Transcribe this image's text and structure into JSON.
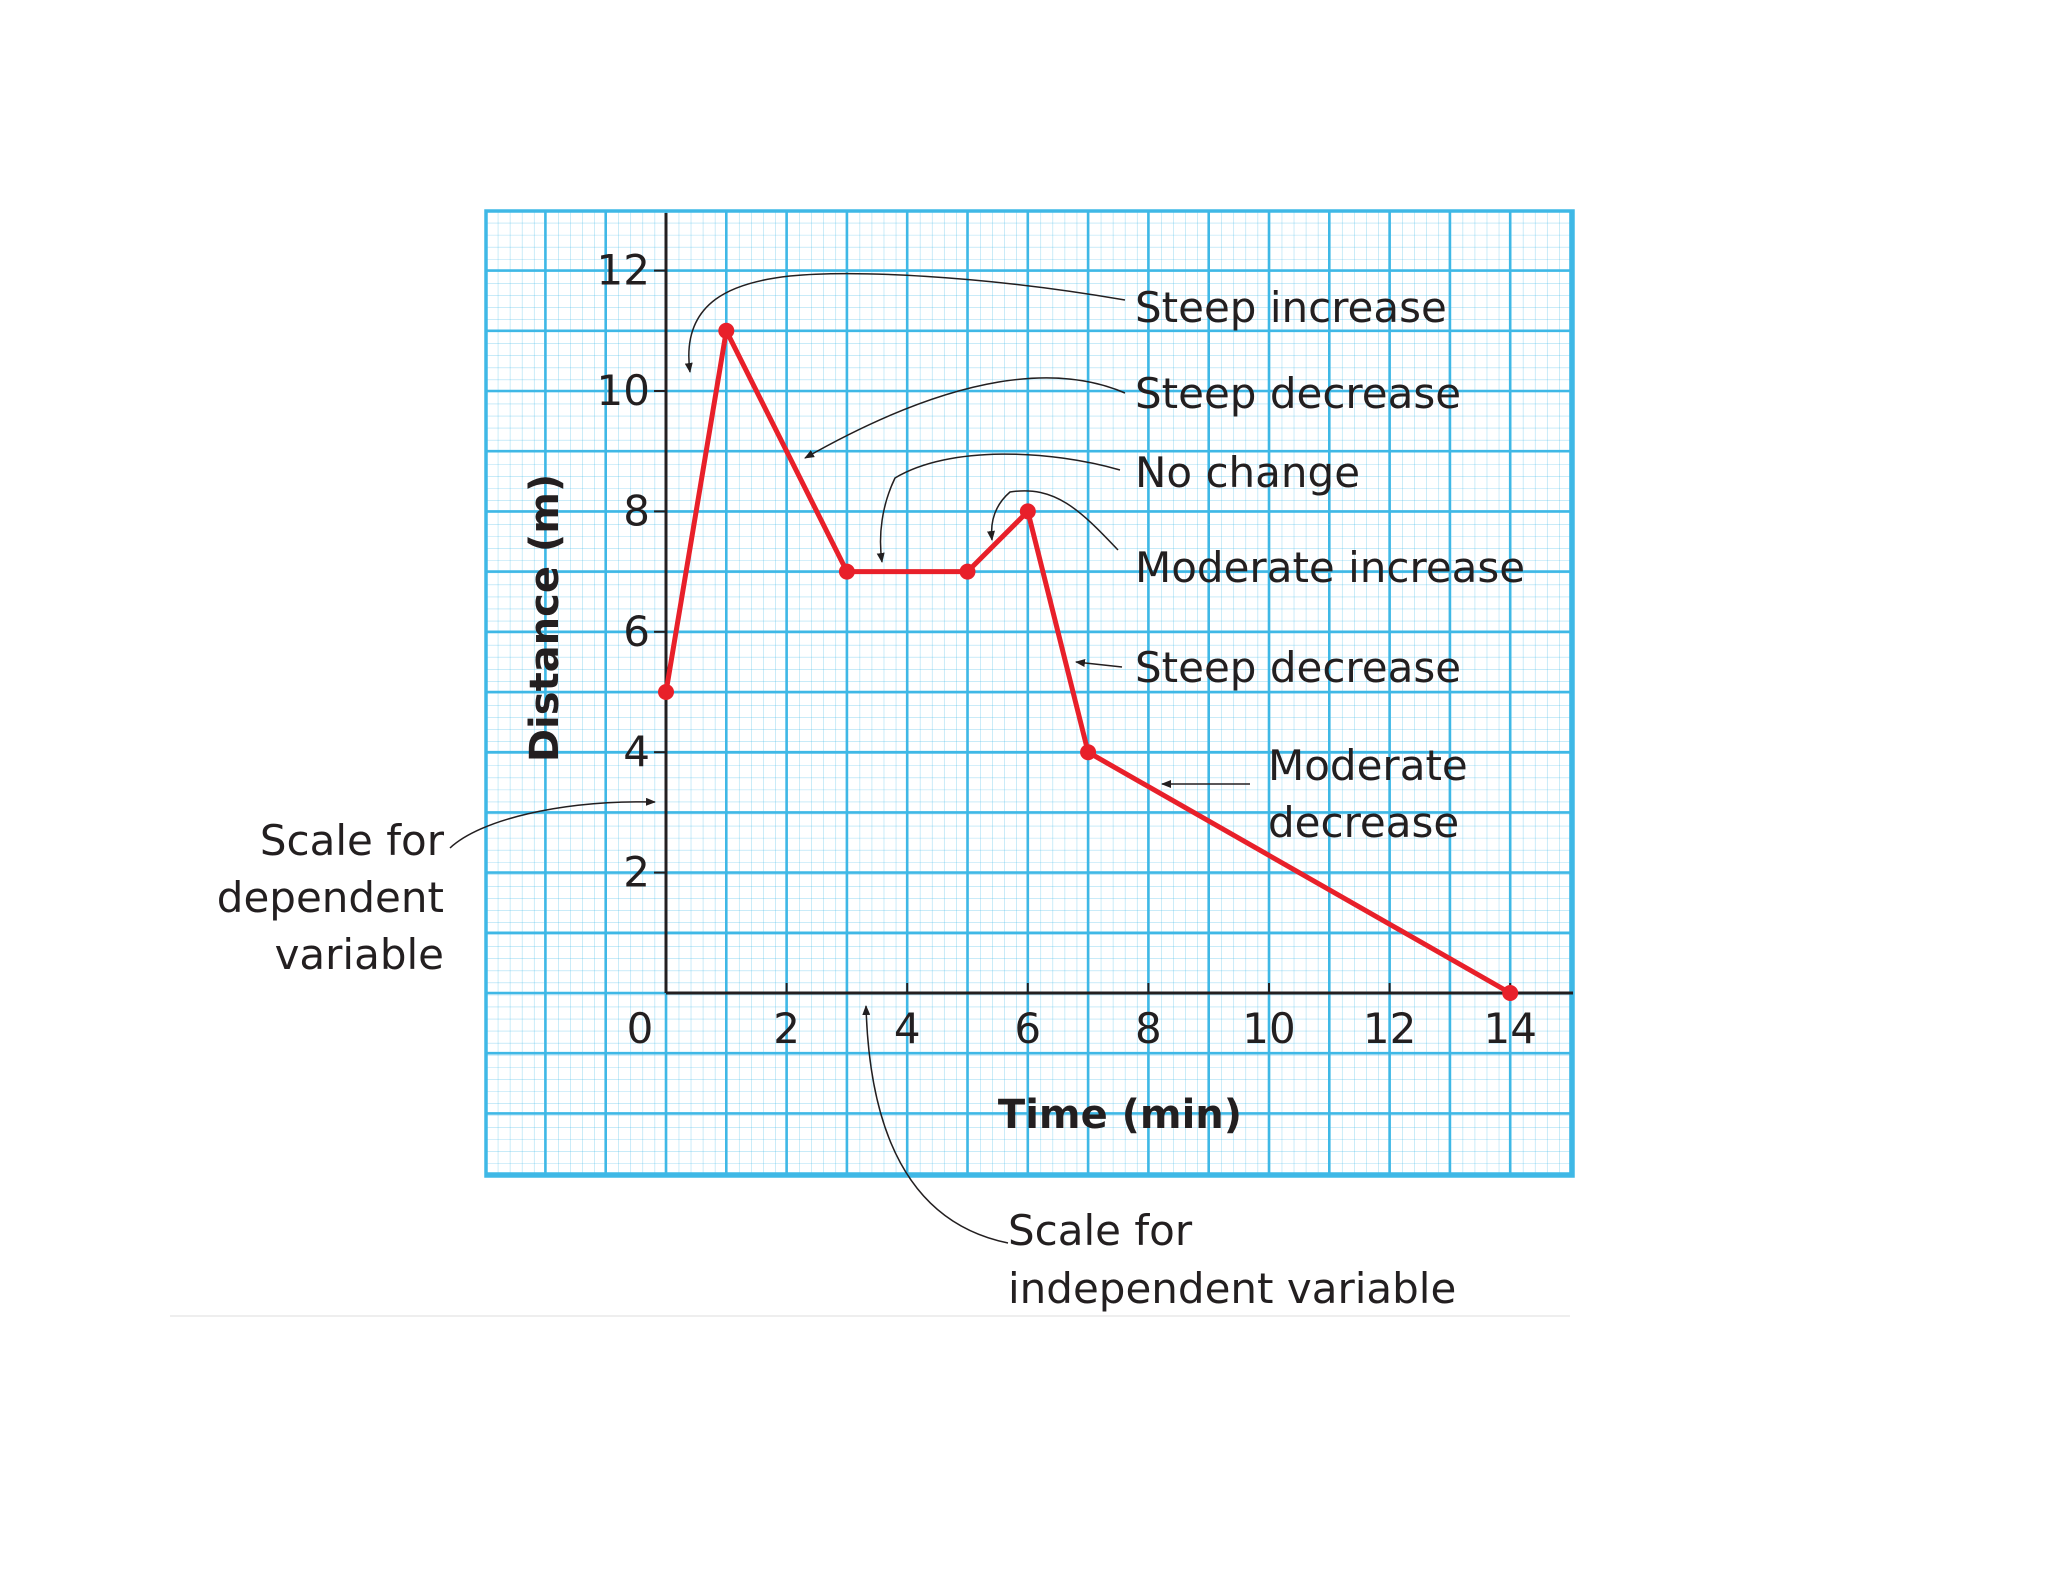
{
  "chart_data": {
    "type": "line",
    "title": "",
    "xlabel": "Time (min)",
    "ylabel": "Distance (m)",
    "xlim": [
      0,
      14
    ],
    "ylim": [
      0,
      12
    ],
    "x_ticks": [
      "0",
      "2",
      "4",
      "6",
      "8",
      "10",
      "12",
      "14"
    ],
    "y_ticks": [
      "2",
      "4",
      "6",
      "8",
      "10",
      "12"
    ],
    "grid": true,
    "series": [
      {
        "points": [
          {
            "x": 0,
            "y": 5
          },
          {
            "x": 1,
            "y": 11
          },
          {
            "x": 3,
            "y": 7
          },
          {
            "x": 5,
            "y": 7
          },
          {
            "x": 6,
            "y": 8
          },
          {
            "x": 7,
            "y": 4
          },
          {
            "x": 14,
            "y": 0
          }
        ]
      }
    ],
    "annotations": [
      {
        "text": "Steep increase"
      },
      {
        "text": "Steep decrease"
      },
      {
        "text": "No change"
      },
      {
        "text": "Moderate increase"
      },
      {
        "text": "Steep decrease"
      },
      {
        "text": "Moderate decrease"
      }
    ],
    "side_labels": {
      "dependent": "Scale for dependent variable",
      "independent": "Scale for independent variable"
    }
  },
  "colors": {
    "grid": "#3fb8e6",
    "line": "#e8202a",
    "axis": "#231f20",
    "text": "#231f20",
    "background": "#ffffff"
  }
}
